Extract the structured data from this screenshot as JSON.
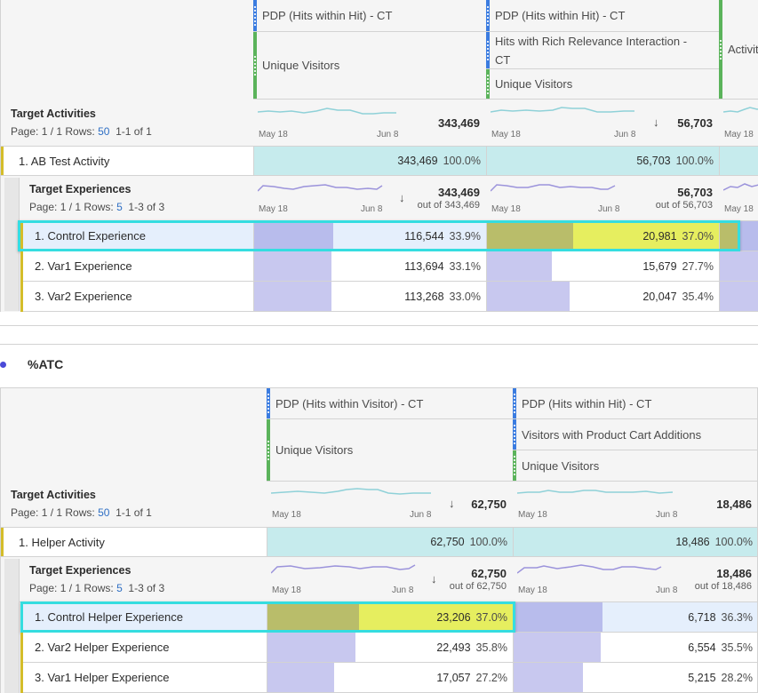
{
  "colors": {
    "metric_blue": "#3b7ce0",
    "metric_green": "#5bb35b",
    "teal_fill": "#c6ebed",
    "purple_bar": "#c8c8ef",
    "highlight_yellow": "#e6ee5f",
    "highlight_olive": "#b9bd6a",
    "selection": "#35dde0"
  },
  "table1": {
    "headers": {
      "col1": {
        "segment": "PDP (Hits within Hit) - CT",
        "metric": "Unique Visitors"
      },
      "col2": {
        "segment": "PDP (Hits within Hit) - CT",
        "subsegment": "Hits with Rich Relevance Interaction - CT",
        "metric": "Unique Visitors"
      },
      "col3": {
        "metric": "Activit"
      }
    },
    "activities": {
      "title": "Target Activities",
      "page_label": "Page: 1 / 1 Rows: ",
      "rows_value": "50",
      "range": "  1-1 of 1",
      "col1": {
        "spark_start": "May 18",
        "spark_end": "Jun 8",
        "total": "343,469"
      },
      "col2": {
        "spark_start": "May 18",
        "spark_end": "Jun 8",
        "total": "56,703",
        "sorted": true
      },
      "col3": {
        "spark_start": "May 18"
      },
      "row": {
        "label": "1. AB Test Activity",
        "col1": {
          "value": "343,469",
          "pct": "100.0%"
        },
        "col2": {
          "value": "56,703",
          "pct": "100.0%"
        }
      }
    },
    "experiences": {
      "title": "Target Experiences",
      "page_label": "Page: 1 / 1 Rows: ",
      "rows_value": "5",
      "range": "  1-3 of 3",
      "col1": {
        "spark_start": "May 18",
        "spark_end": "Jun 8",
        "total": "343,469",
        "out_of": "out of 343,469",
        "sorted": true
      },
      "col2": {
        "spark_start": "May 18",
        "spark_end": "Jun 8",
        "total": "56,703",
        "out_of": "out of 56,703"
      },
      "col3": {
        "spark_start": "May 18"
      },
      "rows": [
        {
          "label": "1. Control Experience",
          "col1": {
            "value": "116,544",
            "pct": "33.9%",
            "fraction": 0.339
          },
          "col2": {
            "value": "20,981",
            "pct": "37.0%",
            "fraction": 0.37
          },
          "selected": true
        },
        {
          "label": "2. Var1 Experience",
          "col1": {
            "value": "113,694",
            "pct": "33.1%",
            "fraction": 0.331
          },
          "col2": {
            "value": "15,679",
            "pct": "27.7%",
            "fraction": 0.277
          }
        },
        {
          "label": "3. Var2 Experience",
          "col1": {
            "value": "113,268",
            "pct": "33.0%",
            "fraction": 0.33
          },
          "col2": {
            "value": "20,047",
            "pct": "35.4%",
            "fraction": 0.354
          }
        }
      ]
    }
  },
  "section2": {
    "title": "%ATC"
  },
  "table2": {
    "headers": {
      "col1": {
        "segment": "PDP (Hits within Visitor) - CT",
        "metric": "Unique Visitors"
      },
      "col2": {
        "segment": "PDP (Hits within Hit) - CT",
        "subsegment": "Visitors with Product Cart Additions",
        "metric": "Unique Visitors"
      }
    },
    "activities": {
      "title": "Target Activities",
      "page_label": "Page: 1 / 1 Rows: ",
      "rows_value": "50",
      "range": "  1-1 of 1",
      "col1": {
        "spark_start": "May 18",
        "spark_end": "Jun 8",
        "total": "62,750",
        "sorted": true
      },
      "col2": {
        "spark_start": "May 18",
        "spark_end": "Jun 8",
        "total": "18,486"
      },
      "row": {
        "label": "1. Helper Activity",
        "col1": {
          "value": "62,750",
          "pct": "100.0%"
        },
        "col2": {
          "value": "18,486",
          "pct": "100.0%"
        }
      }
    },
    "experiences": {
      "title": "Target Experiences",
      "page_label": "Page: 1 / 1 Rows: ",
      "rows_value": "5",
      "range": "  1-3 of 3",
      "col1": {
        "spark_start": "May 18",
        "spark_end": "Jun 8",
        "total": "62,750",
        "out_of": "out of 62,750",
        "sorted": true
      },
      "col2": {
        "spark_start": "May 18",
        "spark_end": "Jun 8",
        "total": "18,486",
        "out_of": "out of 18,486"
      },
      "rows": [
        {
          "label": "1. Control Helper Experience",
          "col1": {
            "value": "23,206",
            "pct": "37.0%",
            "fraction": 0.37
          },
          "col2": {
            "value": "6,718",
            "pct": "36.3%",
            "fraction": 0.363
          },
          "selected": true
        },
        {
          "label": "2. Var2 Helper Experience",
          "col1": {
            "value": "22,493",
            "pct": "35.8%",
            "fraction": 0.358
          },
          "col2": {
            "value": "6,554",
            "pct": "35.5%",
            "fraction": 0.355
          }
        },
        {
          "label": "3. Var1 Helper Experience",
          "col1": {
            "value": "17,057",
            "pct": "27.2%",
            "fraction": 0.272
          },
          "col2": {
            "value": "5,215",
            "pct": "28.2%",
            "fraction": 0.282
          }
        }
      ]
    }
  }
}
